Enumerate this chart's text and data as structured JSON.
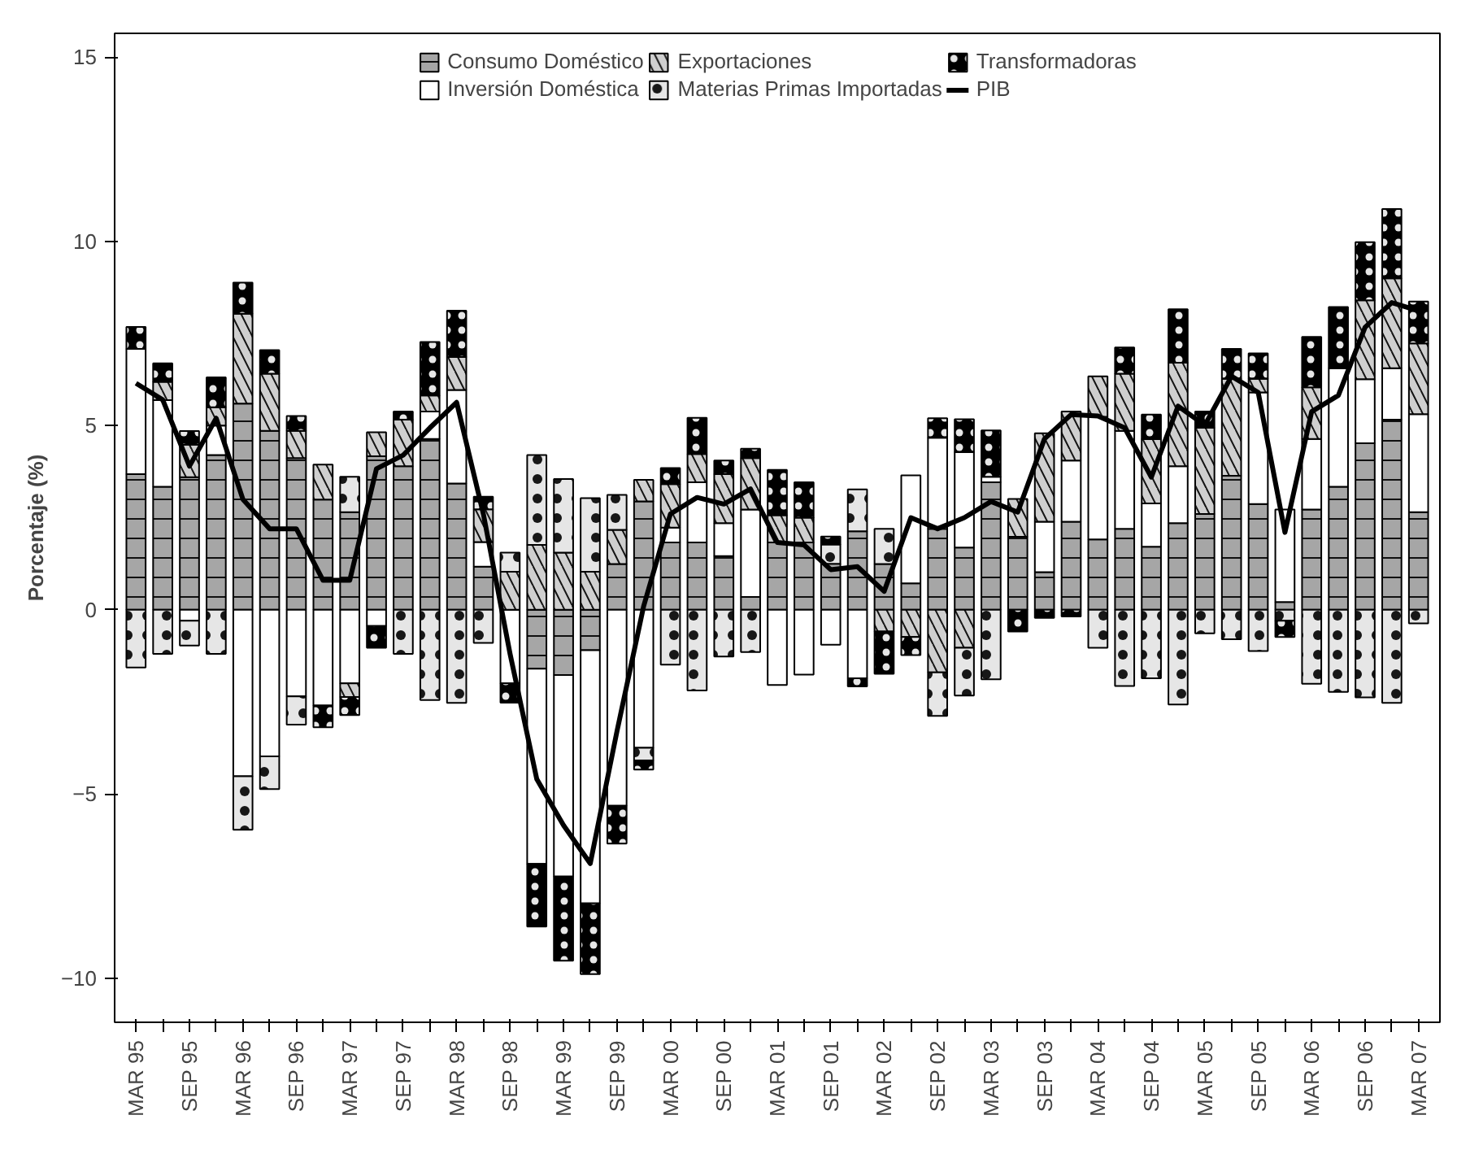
{
  "chart_data": {
    "type": "bar",
    "stacked": true,
    "ylabel": "Porcentaje (%)",
    "categories": [
      "MAR 95",
      null,
      "SEP 95",
      null,
      "MAR 96",
      null,
      "SEP 96",
      null,
      "MAR 97",
      null,
      "SEP 97",
      null,
      "MAR 98",
      null,
      "SEP 98",
      null,
      "MAR 99",
      null,
      "SEP 99",
      null,
      "MAR 00",
      null,
      "SEP 00",
      null,
      "MAR 01",
      null,
      "SEP 01",
      null,
      "MAR 02",
      null,
      "SEP 02",
      null,
      "MAR 03",
      null,
      "SEP 03",
      null,
      "MAR 04",
      null,
      "SEP 04",
      null,
      "MAR 05",
      null,
      "SEP 05",
      null,
      "MAR 06",
      null,
      "SEP 06",
      null,
      "MAR 07"
    ],
    "ylim": [
      -11.2,
      15.65
    ],
    "yticks": [
      -10,
      -5,
      0,
      5,
      10,
      15
    ],
    "grid": false,
    "legend": "top",
    "series": [
      {
        "name": "Consumo Doméstico",
        "color": "#a6a6a6",
        "values": [
          3.68,
          3.34,
          3.6,
          4.2,
          5.6,
          4.86,
          4.12,
          2.99,
          2.65,
          4.17,
          3.9,
          4.64,
          3.43,
          1.17,
          null,
          -1.6,
          -1.77,
          -1.1,
          1.24,
          2.94,
          1.83,
          1.83,
          1.46,
          0.35,
          1.83,
          1.83,
          1.25,
          2.13,
          1.24,
          0.72,
          2.2,
          1.69,
          3.46,
          1.98,
          1.02,
          2.39,
          1.91,
          2.2,
          1.71,
          2.35,
          2.6,
          3.64,
          2.87,
          0.21,
          2.72,
          3.34,
          4.52,
          5.16,
          2.65
        ]
      },
      {
        "name": "Inversión Doméstica",
        "color": "#ffffff",
        "values": [
          3.4,
          2.35,
          -0.3,
          0.8,
          -4.52,
          -3.98,
          -2.35,
          -2.6,
          -2.0,
          -0.44,
          null,
          0.74,
          2.54,
          0.67,
          -2.0,
          -5.3,
          -5.47,
          -6.87,
          -5.32,
          -3.75,
          0.4,
          1.63,
          0.89,
          2.37,
          -2.04,
          -1.76,
          -0.95,
          -1.86,
          null,
          2.93,
          2.47,
          2.59,
          0.15,
          null,
          1.37,
          1.66,
          3.33,
          2.66,
          1.18,
          1.55,
          null,
          null,
          3.03,
          2.51,
          1.92,
          3.22,
          1.74,
          1.4,
          2.66
        ]
      },
      {
        "name": "Exportaciones",
        "color": "#cfcfcf",
        "values": [
          null,
          0.5,
          0.88,
          0.5,
          2.44,
          1.55,
          0.74,
          0.95,
          -0.37,
          0.65,
          1.26,
          0.44,
          0.89,
          0.89,
          1.03,
          1.76,
          1.55,
          1.03,
          0.93,
          0.59,
          1.18,
          0.77,
          1.33,
          1.4,
          0.74,
          0.67,
          null,
          null,
          -0.59,
          -0.74,
          -1.7,
          -1.03,
          null,
          1.03,
          2.4,
          1.33,
          1.1,
          1.55,
          1.74,
          2.81,
          2.34,
          2.63,
          0.37,
          null,
          1.4,
          null,
          2.14,
          2.44,
          1.92
        ]
      },
      {
        "name": "Materias Primas Importadas",
        "color": "#e6e6e6",
        "values": [
          -1.57,
          -1.2,
          -0.67,
          -1.2,
          -1.45,
          -0.89,
          -0.77,
          null,
          0.96,
          null,
          -1.2,
          -2.45,
          -2.53,
          -0.9,
          0.52,
          2.44,
          2.0,
          2.0,
          0.95,
          -0.34,
          -1.49,
          -2.19,
          -1.27,
          -1.15,
          null,
          null,
          0.52,
          1.14,
          0.96,
          null,
          -1.18,
          -1.3,
          -1.89,
          null,
          null,
          null,
          -1.03,
          -2.07,
          -1.86,
          -2.57,
          -0.64,
          -0.8,
          -1.12,
          -0.3,
          -2.01,
          -2.23,
          -2.38,
          -2.53,
          -0.37
        ]
      },
      {
        "name": "Transformadoras",
        "color": "#000000",
        "values": [
          0.6,
          0.5,
          0.37,
          0.81,
          0.84,
          0.64,
          0.4,
          -0.59,
          -0.49,
          -0.59,
          0.22,
          1.45,
          1.26,
          0.34,
          -0.52,
          -1.7,
          -2.29,
          -1.92,
          -1.03,
          -0.25,
          0.44,
          0.98,
          0.37,
          0.25,
          1.23,
          0.96,
          0.22,
          -0.22,
          -1.15,
          -0.49,
          0.53,
          0.89,
          1.26,
          -0.59,
          -0.22,
          -0.18,
          null,
          0.71,
          0.67,
          1.45,
          0.44,
          0.81,
          0.69,
          -0.44,
          1.37,
          1.66,
          1.58,
          1.88,
          1.14
        ]
      },
      {
        "name": "PIB",
        "type": "line",
        "color": "#000000",
        "values": [
          6.15,
          5.7,
          3.9,
          5.2,
          3.0,
          2.2,
          2.2,
          0.8,
          0.8,
          3.83,
          4.2,
          4.94,
          5.63,
          2.6,
          -1.2,
          -4.6,
          -5.85,
          -6.89,
          -3.3,
          0.1,
          2.6,
          3.05,
          2.87,
          3.28,
          1.83,
          1.76,
          1.09,
          1.17,
          0.5,
          2.5,
          2.2,
          2.5,
          2.94,
          2.65,
          4.64,
          5.3,
          5.26,
          4.94,
          3.6,
          5.53,
          5.01,
          6.34,
          5.9,
          2.1,
          5.38,
          5.82,
          7.67,
          8.34,
          8.12
        ]
      }
    ]
  }
}
